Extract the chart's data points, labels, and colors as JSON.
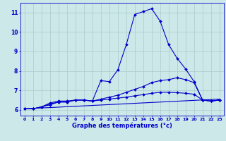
{
  "xlabel": "Graphe des températures (°c)",
  "bg_color": "#cce8e8",
  "grid_color": "#aacccc",
  "line_color": "#0000cc",
  "xlim": [
    -0.5,
    23.5
  ],
  "ylim": [
    5.7,
    11.5
  ],
  "yticks": [
    6,
    7,
    8,
    9,
    10,
    11
  ],
  "xticks": [
    0,
    1,
    2,
    3,
    4,
    5,
    6,
    7,
    8,
    9,
    10,
    11,
    12,
    13,
    14,
    15,
    16,
    17,
    18,
    19,
    20,
    21,
    22,
    23
  ],
  "line1_x": [
    0,
    1,
    2,
    3,
    4,
    5,
    6,
    7,
    8,
    9,
    10,
    11,
    12,
    13,
    14,
    15,
    16,
    17,
    18,
    19,
    20,
    21,
    22,
    23
  ],
  "line1_y": [
    6.05,
    6.05,
    6.15,
    6.35,
    6.45,
    6.45,
    6.5,
    6.5,
    6.45,
    7.5,
    7.45,
    8.05,
    9.35,
    10.9,
    11.05,
    11.2,
    10.55,
    9.35,
    8.65,
    8.1,
    7.45,
    6.5,
    6.45,
    6.5
  ],
  "line2_x": [
    0,
    1,
    2,
    3,
    4,
    5,
    6,
    7,
    8,
    9,
    10,
    11,
    12,
    13,
    14,
    15,
    16,
    17,
    18,
    19,
    20,
    21,
    22,
    23
  ],
  "line2_y": [
    6.05,
    6.05,
    6.15,
    6.3,
    6.4,
    6.4,
    6.5,
    6.5,
    6.45,
    6.55,
    6.65,
    6.75,
    6.9,
    7.05,
    7.2,
    7.4,
    7.5,
    7.55,
    7.65,
    7.55,
    7.4,
    6.5,
    6.45,
    6.5
  ],
  "line3_x": [
    0,
    1,
    2,
    3,
    4,
    5,
    6,
    7,
    8,
    9,
    10,
    11,
    12,
    13,
    14,
    15,
    16,
    17,
    18,
    19,
    20,
    21,
    22,
    23
  ],
  "line3_y": [
    6.05,
    6.05,
    6.15,
    6.25,
    6.4,
    6.4,
    6.5,
    6.5,
    6.45,
    6.5,
    6.55,
    6.6,
    6.65,
    6.72,
    6.78,
    6.85,
    6.9,
    6.9,
    6.88,
    6.85,
    6.8,
    6.5,
    6.45,
    6.5
  ],
  "line4_x": [
    0,
    23
  ],
  "line4_y": [
    6.05,
    6.55
  ]
}
